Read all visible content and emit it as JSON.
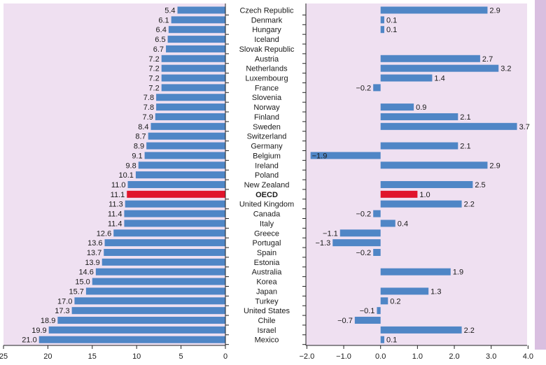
{
  "colors": {
    "panel_bg": "#efe0f1",
    "bar": "#4f86c6",
    "highlight": "#e0142c",
    "side_strip": "#d9bfe0",
    "axis": "#222222"
  },
  "chart_data": [
    {
      "type": "bar",
      "orientation": "horizontal",
      "direction": "reversed",
      "categories": [
        "Czech Republic",
        "Denmark",
        "Hungary",
        "Iceland",
        "Slovak Republic",
        "Austria",
        "Netherlands",
        "Luxembourg",
        "France",
        "Slovenia",
        "Norway",
        "Finland",
        "Sweden",
        "Switzerland",
        "Germany",
        "Belgium",
        "Ireland",
        "Poland",
        "New Zealand",
        "OECD",
        "United Kingdom",
        "Canada",
        "Italy",
        "Greece",
        "Portugal",
        "Spain",
        "Estonia",
        "Australia",
        "Korea",
        "Japan",
        "Turkey",
        "United States",
        "Chile",
        "Israel",
        "Mexico"
      ],
      "values": [
        5.4,
        6.1,
        6.4,
        6.5,
        6.7,
        7.2,
        7.2,
        7.2,
        7.2,
        7.8,
        7.8,
        7.9,
        8.4,
        8.7,
        8.9,
        9.1,
        9.8,
        10.1,
        11.0,
        11.1,
        11.3,
        11.4,
        11.4,
        12.6,
        13.6,
        13.7,
        13.9,
        14.6,
        15.0,
        15.7,
        17.0,
        17.3,
        18.9,
        19.9,
        21.0
      ],
      "value_labels": [
        "5.4",
        "6.1",
        "6.4",
        "6.5",
        "6.7",
        "7.2",
        "7.2",
        "7.2",
        "7.2",
        "7.8",
        "7.8",
        "7.9",
        "8.4",
        "8.7",
        "8.9",
        "9.1",
        "9.8",
        "10.1",
        "11.0",
        "11.1",
        "11.3",
        "11.4",
        "11.4",
        "12.6",
        "13.6",
        "13.7",
        "13.9",
        "14.6",
        "15.0",
        "15.7",
        "17.0",
        "17.3",
        "18.9",
        "19.9",
        "21.0"
      ],
      "highlight": "OECD",
      "xlim": [
        25,
        0
      ],
      "xticks": [
        "25",
        "20",
        "15",
        "10",
        "5",
        "0"
      ],
      "grid": false
    },
    {
      "type": "bar",
      "orientation": "horizontal",
      "categories": [
        "Czech Republic",
        "Denmark",
        "Hungary",
        "Iceland",
        "Slovak Republic",
        "Austria",
        "Netherlands",
        "Luxembourg",
        "France",
        "Slovenia",
        "Norway",
        "Finland",
        "Sweden",
        "Switzerland",
        "Germany",
        "Belgium",
        "Ireland",
        "Poland",
        "New Zealand",
        "OECD",
        "United Kingdom",
        "Canada",
        "Italy",
        "Greece",
        "Portugal",
        "Spain",
        "Estonia",
        "Australia",
        "Korea",
        "Japan",
        "Turkey",
        "United States",
        "Chile",
        "Israel",
        "Mexico"
      ],
      "values": [
        2.9,
        0.1,
        0.1,
        null,
        null,
        2.7,
        3.2,
        1.4,
        -0.2,
        null,
        0.9,
        2.1,
        3.7,
        null,
        2.1,
        -1.9,
        2.9,
        null,
        2.5,
        1.0,
        2.2,
        -0.2,
        0.4,
        -1.1,
        -1.3,
        -0.2,
        null,
        1.9,
        null,
        1.3,
        0.2,
        -0.1,
        -0.7,
        2.2,
        0.1
      ],
      "value_labels": [
        "2.9",
        "0.1",
        "0.1",
        "",
        "",
        "2.7",
        "3.2",
        "1.4",
        "−0.2",
        "",
        "0.9",
        "2.1",
        "3.7",
        "",
        "2.1",
        "−1.9",
        "2.9",
        "",
        "2.5",
        "1.0",
        "2.2",
        "−0.2",
        "0.4",
        "−1.1",
        "−1.3",
        "−0.2",
        "",
        "1.9",
        "",
        "1.3",
        "0.2",
        "−0.1",
        "−0.7",
        "2.2",
        "0.1"
      ],
      "highlight": "OECD",
      "xlim": [
        -2.0,
        4.0
      ],
      "xticks": [
        "−2.0",
        "−1.0",
        "0.0",
        "1.0",
        "2.0",
        "3.0",
        "4.0"
      ],
      "grid": false
    }
  ]
}
